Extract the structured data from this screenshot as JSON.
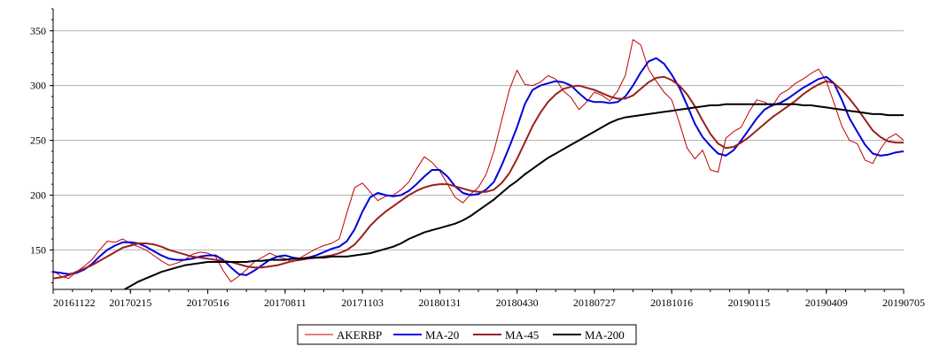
{
  "chart_data": {
    "type": "line",
    "title": "",
    "xlabel": "",
    "ylabel": "",
    "ylim": [
      114,
      370
    ],
    "y_ticks": [
      150,
      200,
      250,
      300,
      350
    ],
    "x_ticks": [
      "20161122",
      "20170215",
      "20170516",
      "20170811",
      "20171103",
      "20180131",
      "20180430",
      "20180727",
      "20181016",
      "20190115",
      "20190409",
      "20190705"
    ],
    "grid": true,
    "legend_position": "bottom",
    "series": [
      {
        "name": "AKERBP",
        "color": "#c00000",
        "values": [
          131,
          126,
          124,
          130,
          135,
          141,
          150,
          158,
          157,
          160,
          156,
          153,
          150,
          145,
          140,
          136,
          138,
          141,
          146,
          148,
          147,
          144,
          131,
          121,
          126,
          132,
          139,
          143,
          147,
          144,
          142,
          139,
          143,
          147,
          151,
          154,
          156,
          160,
          184,
          207,
          211,
          203,
          195,
          199,
          200,
          205,
          212,
          224,
          235,
          230,
          222,
          210,
          198,
          193,
          201,
          207,
          219,
          240,
          268,
          296,
          314,
          301,
          300,
          303,
          309,
          306,
          295,
          289,
          278,
          285,
          294,
          291,
          286,
          295,
          309,
          342,
          337,
          315,
          304,
          294,
          287,
          266,
          243,
          233,
          241,
          223,
          221,
          252,
          258,
          262,
          276,
          287,
          285,
          281,
          292,
          296,
          302,
          306,
          311,
          315,
          304,
          284,
          263,
          250,
          247,
          232,
          229,
          242,
          252,
          256,
          250
        ]
      },
      {
        "name": "MA-20",
        "color": "#0000dd",
        "values": [
          130,
          129,
          128,
          129,
          132,
          137,
          144,
          150,
          154,
          157,
          157,
          156,
          153,
          149,
          145,
          142,
          141,
          141,
          142,
          144,
          145,
          145,
          141,
          134,
          128,
          127,
          131,
          136,
          141,
          144,
          145,
          143,
          142,
          143,
          145,
          148,
          151,
          153,
          158,
          169,
          185,
          198,
          202,
          200,
          199,
          200,
          204,
          210,
          217,
          223,
          223,
          217,
          208,
          202,
          200,
          201,
          205,
          212,
          227,
          244,
          262,
          283,
          296,
          300,
          302,
          304,
          303,
          300,
          293,
          287,
          285,
          285,
          284,
          285,
          290,
          300,
          312,
          322,
          325,
          320,
          310,
          298,
          282,
          265,
          253,
          245,
          238,
          236,
          241,
          250,
          260,
          270,
          278,
          282,
          284,
          288,
          293,
          298,
          302,
          306,
          308,
          302,
          287,
          270,
          258,
          246,
          238,
          236,
          237,
          239,
          240
        ]
      },
      {
        "name": "MA-45",
        "color": "#9a2020",
        "values": [
          124,
          125,
          127,
          130,
          133,
          136,
          140,
          144,
          148,
          152,
          154,
          156,
          156,
          155,
          153,
          150,
          148,
          146,
          144,
          143,
          142,
          141,
          140,
          139,
          137,
          135,
          134,
          134,
          135,
          136,
          138,
          140,
          141,
          142,
          143,
          144,
          145,
          147,
          150,
          155,
          163,
          172,
          179,
          185,
          190,
          195,
          200,
          204,
          207,
          209,
          210,
          210,
          208,
          206,
          204,
          203,
          203,
          205,
          211,
          220,
          233,
          248,
          263,
          275,
          285,
          292,
          297,
          299,
          300,
          298,
          296,
          293,
          290,
          288,
          288,
          291,
          297,
          303,
          307,
          308,
          305,
          300,
          292,
          281,
          268,
          256,
          247,
          243,
          244,
          248,
          253,
          259,
          265,
          271,
          276,
          281,
          286,
          292,
          297,
          301,
          304,
          302,
          296,
          288,
          279,
          269,
          259,
          253,
          249,
          248,
          248
        ]
      },
      {
        "name": "MA-200",
        "color": "#000000",
        "values": [
          null,
          null,
          null,
          null,
          null,
          null,
          null,
          null,
          109,
          113,
          117,
          121,
          124,
          127,
          130,
          132,
          134,
          136,
          137,
          138,
          139,
          139,
          139,
          139,
          139,
          139,
          140,
          140,
          141,
          141,
          141,
          142,
          142,
          143,
          143,
          143,
          144,
          144,
          144,
          145,
          146,
          147,
          149,
          151,
          153,
          156,
          160,
          163,
          166,
          168,
          170,
          172,
          174,
          177,
          181,
          186,
          191,
          196,
          202,
          208,
          213,
          219,
          224,
          229,
          234,
          238,
          242,
          246,
          250,
          254,
          258,
          262,
          266,
          269,
          271,
          272,
          273,
          274,
          275,
          276,
          277,
          278,
          279,
          280,
          281,
          282,
          282,
          283,
          283,
          283,
          283,
          283,
          283,
          283,
          283,
          283,
          283,
          282,
          282,
          281,
          280,
          279,
          278,
          277,
          276,
          275,
          274,
          274,
          273,
          273,
          273
        ]
      }
    ]
  }
}
